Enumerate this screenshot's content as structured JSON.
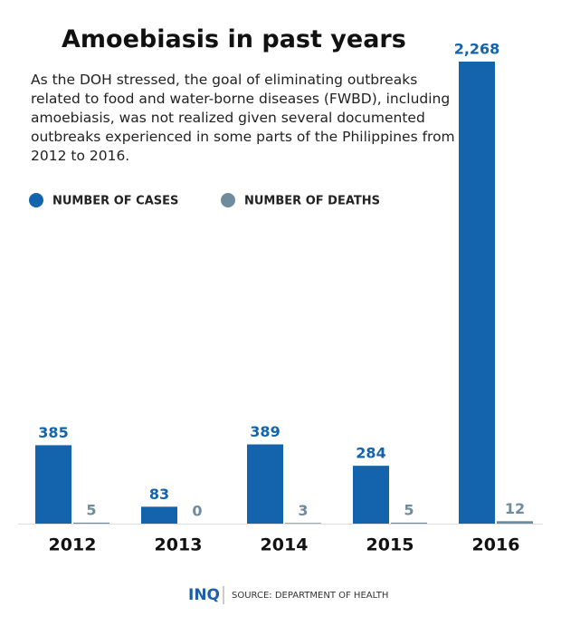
{
  "chart_data": {
    "type": "bar",
    "title": "Amoebiasis in past years",
    "subtitle": "As the DOH stressed, the goal of eliminating outbreaks related to food and water-borne diseases (FWBD), including amoebiasis, was not realized given several documented outbreaks experienced in some parts of the Philippines from 2012 to 2016.",
    "categories": [
      "2012",
      "2013",
      "2014",
      "2015",
      "2016"
    ],
    "series": [
      {
        "name": "NUMBER OF CASES",
        "color": "#1464ad",
        "values": [
          385,
          83,
          389,
          284,
          2268
        ],
        "value_labels": [
          "385",
          "83",
          "389",
          "284",
          "2,268"
        ]
      },
      {
        "name": "NUMBER OF DEATHS",
        "color": "#6f8b9e",
        "values": [
          5,
          0,
          3,
          5,
          12
        ]
      }
    ],
    "logo": "INQ",
    "source": "SOURCE: DEPARTMENT OF HEALTH"
  }
}
